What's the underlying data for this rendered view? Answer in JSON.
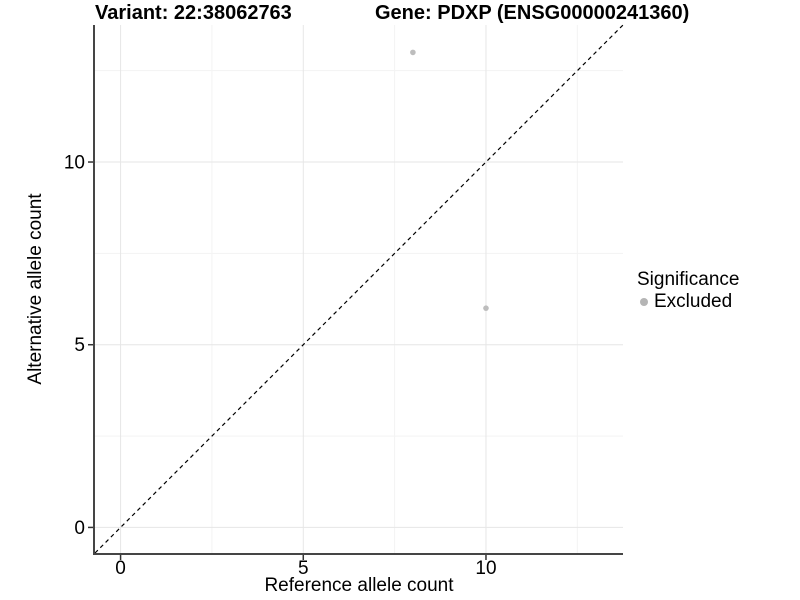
{
  "header": {
    "variant_title": "Variant: 22:38062763",
    "gene_title": "Gene: PDXP (ENSG00000241360)"
  },
  "chart_data": {
    "type": "scatter",
    "title": "Variant: 22:38062763   Gene: PDXP (ENSG00000241360)",
    "xlabel": "Reference allele count",
    "ylabel": "Alternative allele count",
    "xlim": [
      -0.7,
      13.75
    ],
    "ylim": [
      -0.7,
      13.75
    ],
    "x_ticks": [
      0,
      5,
      10
    ],
    "y_ticks": [
      0,
      5,
      10
    ],
    "x_minor_ticks": [
      2.5,
      7.5,
      12.5
    ],
    "y_minor_ticks": [
      2.5,
      7.5,
      12.5
    ],
    "grid": "major+minor",
    "reference_line": {
      "type": "identity",
      "slope": 1,
      "intercept": 0,
      "style": "dashed",
      "color": "#000000"
    },
    "series": [
      {
        "name": "Excluded",
        "color": "#bdbdbd",
        "points": [
          {
            "x": 8,
            "y": 13
          },
          {
            "x": 10,
            "y": 6
          }
        ]
      }
    ],
    "legend": {
      "title": "Significance",
      "position": "right",
      "items": [
        {
          "label": "Excluded",
          "color": "#b5b5b5"
        }
      ]
    }
  },
  "colors": {
    "background": "#ffffff",
    "grid_major": "#e6e6e6",
    "grid_minor": "#f3f3f3",
    "axis_line": "#454545",
    "tick_mark": "#333333",
    "text": "#000000"
  }
}
